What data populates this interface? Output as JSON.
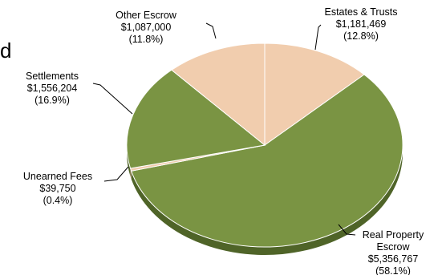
{
  "chart_data": {
    "type": "pie",
    "style": "3d",
    "title": "",
    "start_angle_deg": 0,
    "direction": "clockwise",
    "slices": [
      {
        "name": "Estates & Trusts",
        "value": 1181469,
        "value_label": "$1,181,469",
        "percent": 12.8,
        "percent_label": "(12.8%)",
        "color": "#F1CDAE"
      },
      {
        "name": "Real Property Escrow",
        "name_lines": [
          "Real Property",
          "Escrow"
        ],
        "value": 5356767,
        "value_label": "$5,356,767",
        "percent": 58.1,
        "percent_label": "(58.1%)",
        "color": "#7A9443"
      },
      {
        "name": "Unearned Fees",
        "value": 39750,
        "value_label": "$39,750",
        "percent": 0.4,
        "percent_label": "(0.4%)",
        "color": "#F1CDAE"
      },
      {
        "name": "Settlements",
        "value": 1556204,
        "value_label": "$1,556,204",
        "percent": 16.9,
        "percent_label": "(16.9%)",
        "color": "#7A9443"
      },
      {
        "name": "Other Escrow",
        "value": 1087000,
        "value_label": "$1,087,000",
        "percent": 11.8,
        "percent_label": "(11.8%)",
        "color": "#F1CDAE"
      }
    ],
    "colors": {
      "green_side": "#4F6428",
      "tan_side": "#B99A7C"
    }
  }
}
